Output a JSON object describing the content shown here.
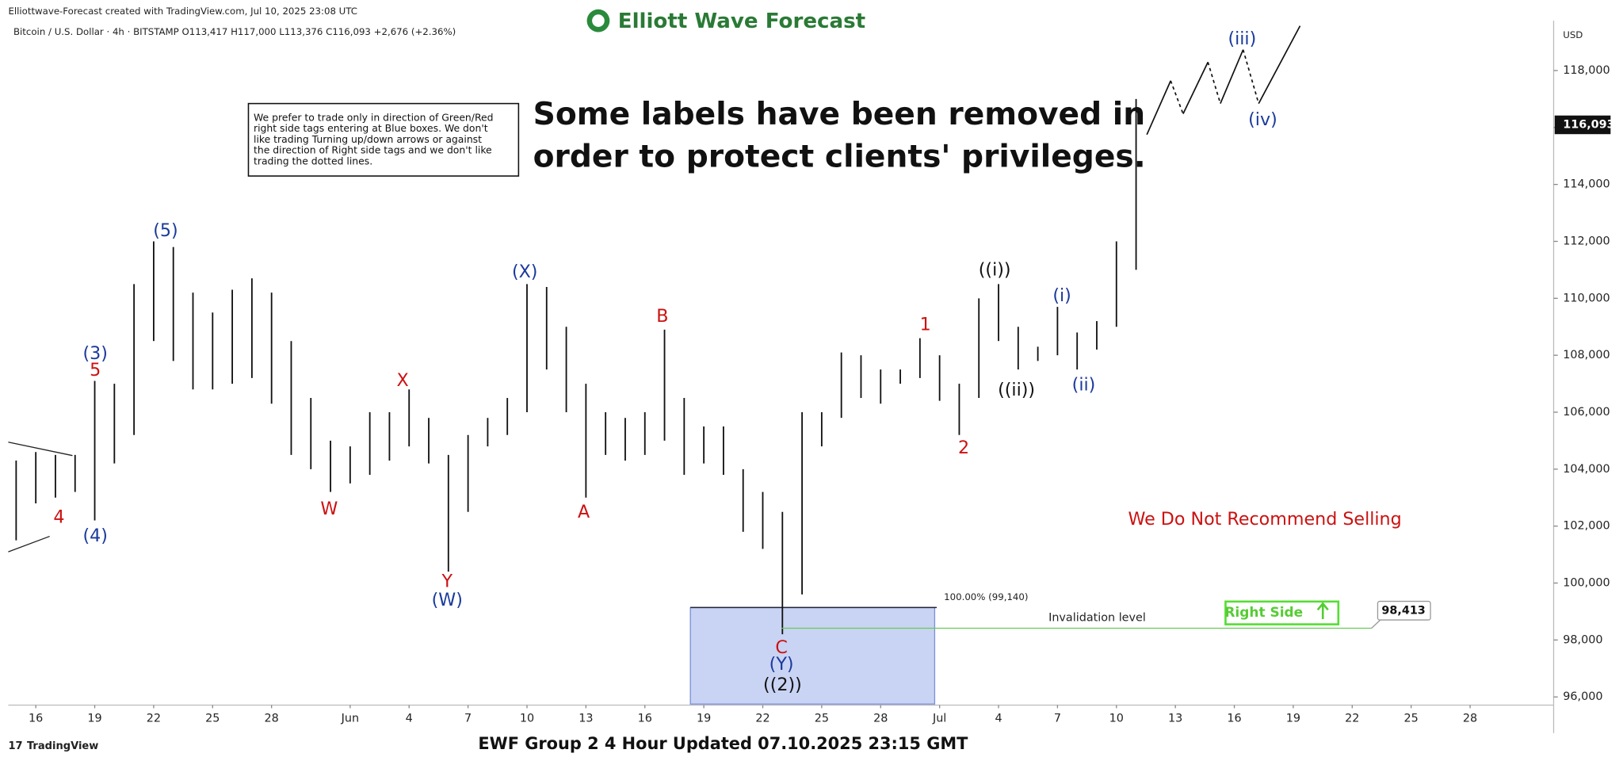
{
  "chart_data": {
    "type": "hilo",
    "watermark": "Elliottwave-Forecast created with TradingView.com, Jul 10, 2025 23:08 UTC",
    "symbol_line": "Bitcoin / U.S. Dollar · 4h · BITSTAMP  O113,417  H117,000  L113,376  C116,093  +2,676 (+2.36%)",
    "logo": "Elliott Wave Forecast",
    "note": [
      "We prefer to trade only in direction of Green/Red",
      "right side tags entering at Blue boxes. We don't",
      "like trading Turning up/down arrows or against",
      "the direction of Right side tags and we don't like",
      "trading the dotted lines."
    ],
    "headline": [
      "Some labels have been removed in",
      "order to protect clients' privileges."
    ],
    "currency": "USD",
    "color": "#111111",
    "x": [
      15,
      16,
      17,
      18,
      19,
      20,
      21,
      22,
      23,
      24,
      25,
      26,
      27,
      28,
      29,
      30,
      31,
      32,
      33,
      34,
      35,
      36,
      37,
      38,
      39,
      40,
      41,
      42,
      43,
      44,
      45,
      46,
      47,
      48,
      49,
      50,
      51,
      52,
      53,
      54,
      55,
      56,
      57,
      58,
      59,
      60,
      61,
      62,
      63,
      64,
      65,
      66,
      67,
      68,
      69,
      70,
      71,
      72
    ],
    "high": [
      104300,
      104600,
      104500,
      104500,
      107100,
      107000,
      110500,
      112000,
      111800,
      110200,
      109500,
      110300,
      110700,
      110200,
      108500,
      106500,
      105000,
      104800,
      106000,
      106000,
      106800,
      105800,
      104500,
      105200,
      105800,
      106500,
      110500,
      110400,
      109000,
      107000,
      106000,
      105800,
      106000,
      108900,
      106500,
      105500,
      105500,
      104000,
      103200,
      102500,
      106000,
      106000,
      108100,
      108000,
      107500,
      107500,
      108600,
      108000,
      107000,
      110000,
      110500,
      109000,
      108300,
      109700,
      108800,
      109200,
      112000,
      117000
    ],
    "low": [
      101500,
      102800,
      103000,
      103200,
      102200,
      104200,
      105200,
      108500,
      107800,
      106800,
      106800,
      107000,
      107200,
      106300,
      104500,
      104000,
      103200,
      103500,
      103800,
      104300,
      104800,
      104200,
      100400,
      102500,
      104800,
      105200,
      106000,
      107500,
      106000,
      103000,
      104500,
      104300,
      104500,
      105000,
      103800,
      104200,
      103800,
      101800,
      101200,
      98200,
      99600,
      104800,
      105800,
      106500,
      106300,
      107000,
      107200,
      106400,
      105200,
      106500,
      108500,
      107500,
      107800,
      108000,
      107500,
      108200,
      109000,
      111000
    ],
    "xlim": [
      14.6,
      93.2
    ],
    "xticks": [
      {
        "value": 16,
        "label": "16"
      },
      {
        "value": 19,
        "label": "19"
      },
      {
        "value": 22,
        "label": "22"
      },
      {
        "value": 25,
        "label": "25"
      },
      {
        "value": 28,
        "label": "28"
      },
      {
        "value": 32,
        "label": "Jun"
      },
      {
        "value": 35,
        "label": "4"
      },
      {
        "value": 38,
        "label": "7"
      },
      {
        "value": 41,
        "label": "10"
      },
      {
        "value": 44,
        "label": "13"
      },
      {
        "value": 47,
        "label": "16"
      },
      {
        "value": 50,
        "label": "19"
      },
      {
        "value": 53,
        "label": "22"
      },
      {
        "value": 56,
        "label": "25"
      },
      {
        "value": 59,
        "label": "28"
      },
      {
        "value": 62,
        "label": "Jul"
      },
      {
        "value": 65,
        "label": "4"
      },
      {
        "value": 68,
        "label": "7"
      },
      {
        "value": 71,
        "label": "10"
      },
      {
        "value": 74,
        "label": "13"
      },
      {
        "value": 77,
        "label": "16"
      },
      {
        "value": 80,
        "label": "19"
      },
      {
        "value": 83,
        "label": "22"
      },
      {
        "value": 86,
        "label": "25"
      },
      {
        "value": 89,
        "label": "28"
      }
    ],
    "ylim": [
      95750,
      119750
    ],
    "yticks": [
      {
        "value": 96000,
        "label": "96,000"
      },
      {
        "value": 98000,
        "label": "98,000"
      },
      {
        "value": 100000,
        "label": "100,000"
      },
      {
        "value": 102000,
        "label": "102,000"
      },
      {
        "value": 104000,
        "label": "104,000"
      },
      {
        "value": 106000,
        "label": "106,000"
      },
      {
        "value": 108000,
        "label": "108,000"
      },
      {
        "value": 110000,
        "label": "110,000"
      },
      {
        "value": 112000,
        "label": "112,000"
      },
      {
        "value": 114000,
        "label": "114,000"
      },
      {
        "value": 116000,
        "label": "116,000"
      },
      {
        "value": 118000,
        "label": "118,000"
      }
    ],
    "last_price": {
      "value": 116093,
      "label": "116,093"
    },
    "invalidation": {
      "value": 98413,
      "label": "98,413",
      "text": "Invalidation level"
    },
    "fib_level": {
      "value": 99140,
      "label": "100.00% (99,140)"
    },
    "right_side": "Right Side",
    "recommendation": "We Do Not Recommend Selling",
    "annotations": [
      {
        "text": "4",
        "color": "#cc1111"
      },
      {
        "text": "(4)",
        "color": "#1a3a9c"
      },
      {
        "text": "(3)",
        "color": "#1a3a9c"
      },
      {
        "text": "5",
        "color": "#cc1111"
      },
      {
        "text": "(5)",
        "color": "#1a3a9c"
      },
      {
        "text": "W",
        "color": "#cc1111"
      },
      {
        "text": "X",
        "color": "#cc1111"
      },
      {
        "text": "Y",
        "color": "#cc1111"
      },
      {
        "text": "(W)",
        "color": "#1a3a9c"
      },
      {
        "text": "(X)",
        "color": "#1a3a9c"
      },
      {
        "text": "A",
        "color": "#cc1111"
      },
      {
        "text": "B",
        "color": "#cc1111"
      },
      {
        "text": "C",
        "color": "#cc1111"
      },
      {
        "text": "(Y)",
        "color": "#1a3a9c"
      },
      {
        "text": "((2))",
        "color": "#111111"
      },
      {
        "text": "1",
        "color": "#cc1111"
      },
      {
        "text": "2",
        "color": "#cc1111"
      },
      {
        "text": "((i))",
        "color": "#111111"
      },
      {
        "text": "((ii))",
        "color": "#111111"
      },
      {
        "text": "(i)",
        "color": "#1a3a9c"
      },
      {
        "text": "(ii)",
        "color": "#1a3a9c"
      },
      {
        "text": "(iii)",
        "color": "#1a3a9c"
      },
      {
        "text": "(iv)",
        "color": "#1a3a9c"
      }
    ],
    "footer": "EWF Group 2 4 Hour Updated 07.10.2025 23:15 GMT",
    "brand": "TradingView"
  }
}
